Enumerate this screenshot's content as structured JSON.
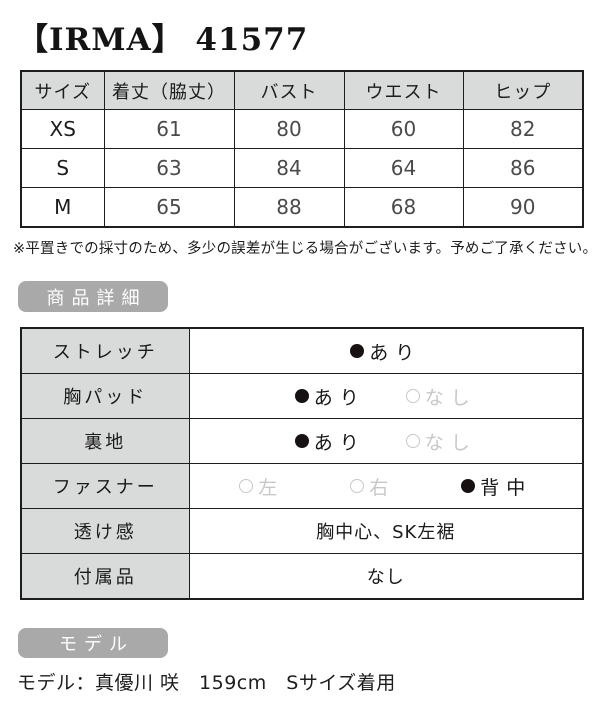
{
  "title": "【IRMA】 41577",
  "size_table": {
    "headers": [
      "サイズ",
      "着丈（脇丈）",
      "バスト",
      "ウエスト",
      "ヒップ"
    ],
    "rows": [
      {
        "size": "XS",
        "values": [
          "61",
          "80",
          "60",
          "82"
        ]
      },
      {
        "size": "S",
        "values": [
          "63",
          "84",
          "64",
          "86"
        ]
      },
      {
        "size": "M",
        "values": [
          "65",
          "88",
          "68",
          "90"
        ]
      }
    ]
  },
  "note": "※平置きでの採寸のため、多少の誤差が生じる場合がございます。予めご了承ください。",
  "sections": {
    "details_label": "商品詳細",
    "model_label": "モデル"
  },
  "details_table": {
    "rows": [
      {
        "label": "ストレッチ",
        "options": [
          {
            "text": "あり",
            "selected": true
          }
        ]
      },
      {
        "label": "胸パッド",
        "options": [
          {
            "text": "あり",
            "selected": true
          },
          {
            "text": "なし",
            "selected": false
          }
        ]
      },
      {
        "label": "裏地",
        "options": [
          {
            "text": "あり",
            "selected": true
          },
          {
            "text": "なし",
            "selected": false
          }
        ]
      },
      {
        "label": "ファスナー",
        "options": [
          {
            "text": "左",
            "selected": false
          },
          {
            "text": "右",
            "selected": false
          },
          {
            "text": "背中",
            "selected": true
          }
        ]
      },
      {
        "label": "透け感",
        "text": "胸中心、SK左裾"
      },
      {
        "label": "付属品",
        "text": "なし"
      }
    ]
  },
  "model_info": "モデル：真優川 咲　159cm　Sサイズ着用",
  "colors": {
    "page_bg": "#ffffff",
    "badge_bg": "#a9a9a9",
    "table_header_bg": "#d9dada",
    "border": "#1d1d1d",
    "inactive_option": "#c8c8c8",
    "selected_dot": "#171112"
  }
}
